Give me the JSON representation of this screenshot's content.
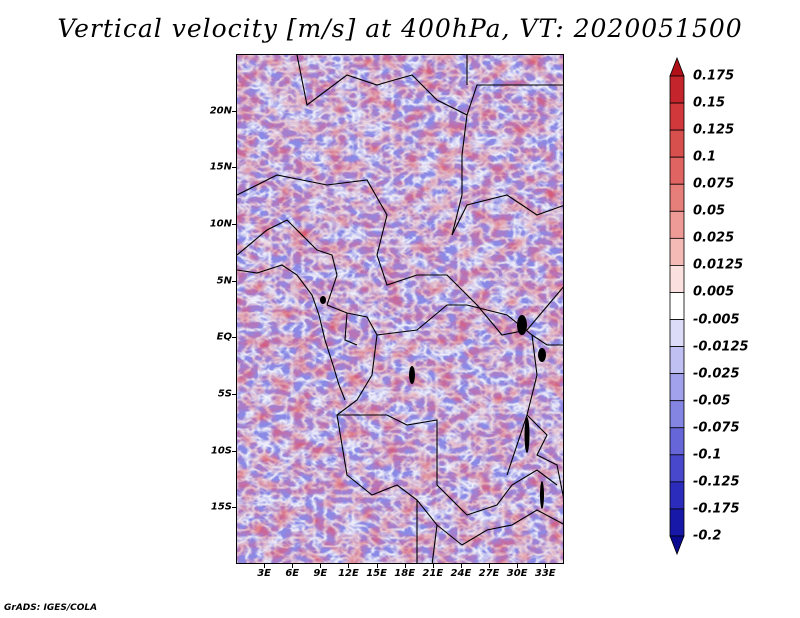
{
  "title": "Vertical velocity [m/s] at 400hPa, VT: 2020051500",
  "credit": "GrADS: IGES/COLA",
  "map": {
    "lat_labels": [
      "20N",
      "15N",
      "10N",
      "5N",
      "EQ",
      "5S",
      "10S",
      "15S"
    ],
    "lon_labels": [
      "3E",
      "6E",
      "9E",
      "12E",
      "15E",
      "18E",
      "21E",
      "24E",
      "27E",
      "30E",
      "33E"
    ],
    "lat_values": [
      20,
      15,
      10,
      5,
      0,
      -5,
      -10,
      -15
    ],
    "lon_values": [
      3,
      6,
      9,
      12,
      15,
      18,
      21,
      24,
      27,
      30,
      33
    ],
    "lat_range": [
      -20,
      25
    ],
    "lon_range": [
      0,
      35
    ]
  },
  "colorbar": {
    "labels": [
      "0.175",
      "0.15",
      "0.125",
      "0.1",
      "0.075",
      "0.05",
      "0.025",
      "0.0125",
      "0.005",
      "-0.005",
      "-0.0125",
      "-0.025",
      "-0.05",
      "-0.075",
      "-0.1",
      "-0.125",
      "-0.175",
      "-0.2"
    ],
    "colors": [
      "#b01018",
      "#c4242c",
      "#d0383c",
      "#d8504e",
      "#e06462",
      "#e67e7a",
      "#ee9a96",
      "#f4bab6",
      "#fae0de",
      "#ffffff",
      "#dcdcf8",
      "#c0c0f2",
      "#a2a2ec",
      "#8484e2",
      "#6666d8",
      "#4848cc",
      "#2c2cbc",
      "#1818a8",
      "#0a0a90"
    ],
    "unit": "m/s"
  }
}
